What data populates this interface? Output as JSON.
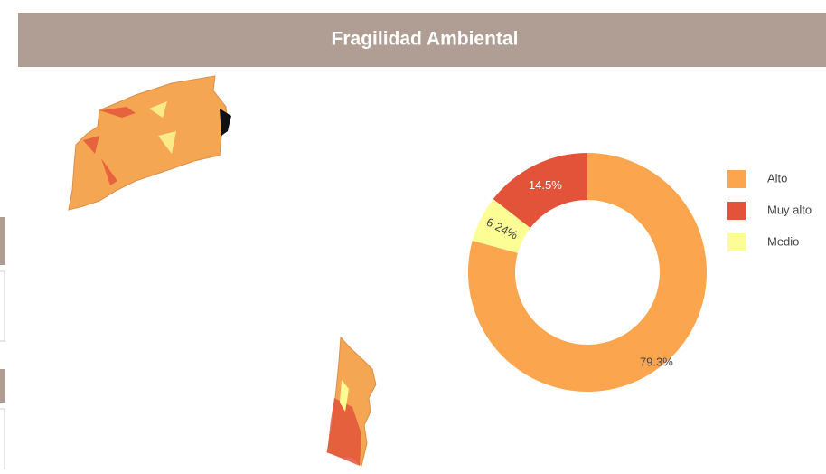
{
  "chart_data": {
    "type": "pie",
    "title": "Fragilidad Ambiental",
    "categories": [
      "Alto",
      "Muy alto",
      "Medio"
    ],
    "values": [
      79.3,
      14.5,
      6.24
    ],
    "value_labels": [
      "79.3%",
      "14.5%",
      "6.24%"
    ],
    "colors": [
      "#fba54f",
      "#e2533a",
      "#fdfd96"
    ],
    "hole": true,
    "legend": "right"
  }
}
